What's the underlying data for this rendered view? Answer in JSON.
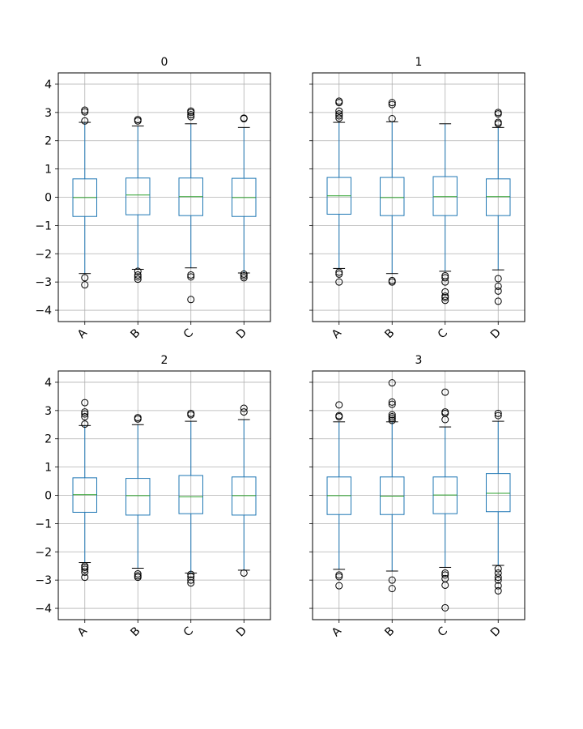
{
  "chart_data": [
    {
      "type": "box",
      "title": "0",
      "categories": [
        "A",
        "B",
        "C",
        "D"
      ],
      "ylim": [
        -4.4,
        4.4
      ],
      "yticks": [
        -4,
        -3,
        -2,
        -1,
        0,
        1,
        2,
        3,
        4
      ],
      "grid": true,
      "boxes": [
        {
          "q1": -0.68,
          "median": -0.01,
          "q3": 0.65,
          "whislo": -2.7,
          "whishi": 2.65,
          "fliers": [
            -2.85,
            -3.1,
            2.7,
            3.02,
            3.08
          ]
        },
        {
          "q1": -0.62,
          "median": 0.08,
          "q3": 0.68,
          "whislo": -2.55,
          "whishi": 2.52,
          "fliers": [
            -2.62,
            -2.75,
            -2.82,
            -2.9,
            2.7,
            2.75
          ]
        },
        {
          "q1": -0.65,
          "median": 0.02,
          "q3": 0.68,
          "whislo": -2.5,
          "whishi": 2.6,
          "fliers": [
            -2.75,
            -2.82,
            -3.62,
            2.85,
            2.92,
            3.0,
            3.05
          ]
        },
        {
          "q1": -0.68,
          "median": -0.01,
          "q3": 0.67,
          "whislo": -2.68,
          "whishi": 2.47,
          "fliers": [
            -2.72,
            -2.78,
            -2.85,
            2.78,
            2.8
          ]
        }
      ]
    },
    {
      "type": "box",
      "title": "1",
      "categories": [
        "A",
        "B",
        "C",
        "D"
      ],
      "ylim": [
        -4.4,
        4.4
      ],
      "yticks": [
        -4,
        -3,
        -2,
        -1,
        0,
        1,
        2,
        3,
        4
      ],
      "grid": true,
      "boxes": [
        {
          "q1": -0.6,
          "median": 0.05,
          "q3": 0.7,
          "whislo": -2.52,
          "whishi": 2.65,
          "fliers": [
            -2.65,
            -2.72,
            -3.0,
            2.8,
            2.88,
            2.95,
            3.05,
            3.35,
            3.4
          ]
        },
        {
          "q1": -0.65,
          "median": -0.01,
          "q3": 0.7,
          "whislo": -2.7,
          "whishi": 2.67,
          "fliers": [
            -2.95,
            -3.0,
            2.78,
            3.28,
            3.35
          ]
        },
        {
          "q1": -0.65,
          "median": 0.02,
          "q3": 0.73,
          "whislo": -2.62,
          "whishi": 2.6,
          "fliers": [
            -2.78,
            -2.85,
            -3.0,
            -3.35,
            -3.5,
            -3.55,
            -3.65
          ]
        },
        {
          "q1": -0.65,
          "median": 0.02,
          "q3": 0.65,
          "whislo": -2.57,
          "whishi": 2.47,
          "fliers": [
            -2.88,
            -3.15,
            -3.32,
            -3.68,
            2.6,
            2.65,
            2.95,
            3.0
          ]
        }
      ]
    },
    {
      "type": "box",
      "title": "2",
      "categories": [
        "A",
        "B",
        "C",
        "D"
      ],
      "ylim": [
        -4.4,
        4.4
      ],
      "yticks": [
        -4,
        -3,
        -2,
        -1,
        0,
        1,
        2,
        3,
        4
      ],
      "grid": true,
      "boxes": [
        {
          "q1": -0.6,
          "median": 0.02,
          "q3": 0.62,
          "whislo": -2.38,
          "whishi": 2.47,
          "fliers": [
            -2.5,
            -2.55,
            -2.62,
            -2.72,
            -2.9,
            2.52,
            2.78,
            2.88,
            2.95,
            3.28
          ]
        },
        {
          "q1": -0.7,
          "median": -0.01,
          "q3": 0.6,
          "whislo": -2.58,
          "whishi": 2.5,
          "fliers": [
            -2.78,
            -2.85,
            -2.9,
            2.7,
            2.75
          ]
        },
        {
          "q1": -0.65,
          "median": -0.05,
          "q3": 0.7,
          "whislo": -2.75,
          "whishi": 2.62,
          "fliers": [
            -2.8,
            -2.88,
            -3.0,
            -3.1,
            2.85,
            2.9
          ]
        },
        {
          "q1": -0.7,
          "median": -0.01,
          "q3": 0.65,
          "whislo": -2.65,
          "whishi": 2.68,
          "fliers": [
            -2.75,
            2.95,
            3.08
          ]
        }
      ]
    },
    {
      "type": "box",
      "title": "3",
      "categories": [
        "A",
        "B",
        "C",
        "D"
      ],
      "ylim": [
        -4.4,
        4.4
      ],
      "yticks": [
        -4,
        -3,
        -2,
        -1,
        0,
        1,
        2,
        3,
        4
      ],
      "grid": true,
      "boxes": [
        {
          "q1": -0.68,
          "median": -0.01,
          "q3": 0.65,
          "whislo": -2.62,
          "whishi": 2.6,
          "fliers": [
            -2.82,
            -2.88,
            -3.2,
            2.78,
            2.82,
            3.2
          ]
        },
        {
          "q1": -0.68,
          "median": -0.03,
          "q3": 0.65,
          "whislo": -2.68,
          "whishi": 2.6,
          "fliers": [
            -3.0,
            -3.3,
            2.65,
            2.72,
            2.78,
            2.85,
            3.22,
            3.3,
            3.98
          ]
        },
        {
          "q1": -0.65,
          "median": 0.01,
          "q3": 0.65,
          "whislo": -2.55,
          "whishi": 2.42,
          "fliers": [
            -2.75,
            -2.82,
            -2.95,
            -3.18,
            -3.98,
            2.68,
            2.9,
            2.95,
            3.65
          ]
        },
        {
          "q1": -0.58,
          "median": 0.07,
          "q3": 0.77,
          "whislo": -2.48,
          "whishi": 2.62,
          "fliers": [
            -2.6,
            -2.75,
            -2.9,
            -3.0,
            -3.2,
            -3.38,
            2.82,
            2.9
          ]
        }
      ]
    }
  ]
}
